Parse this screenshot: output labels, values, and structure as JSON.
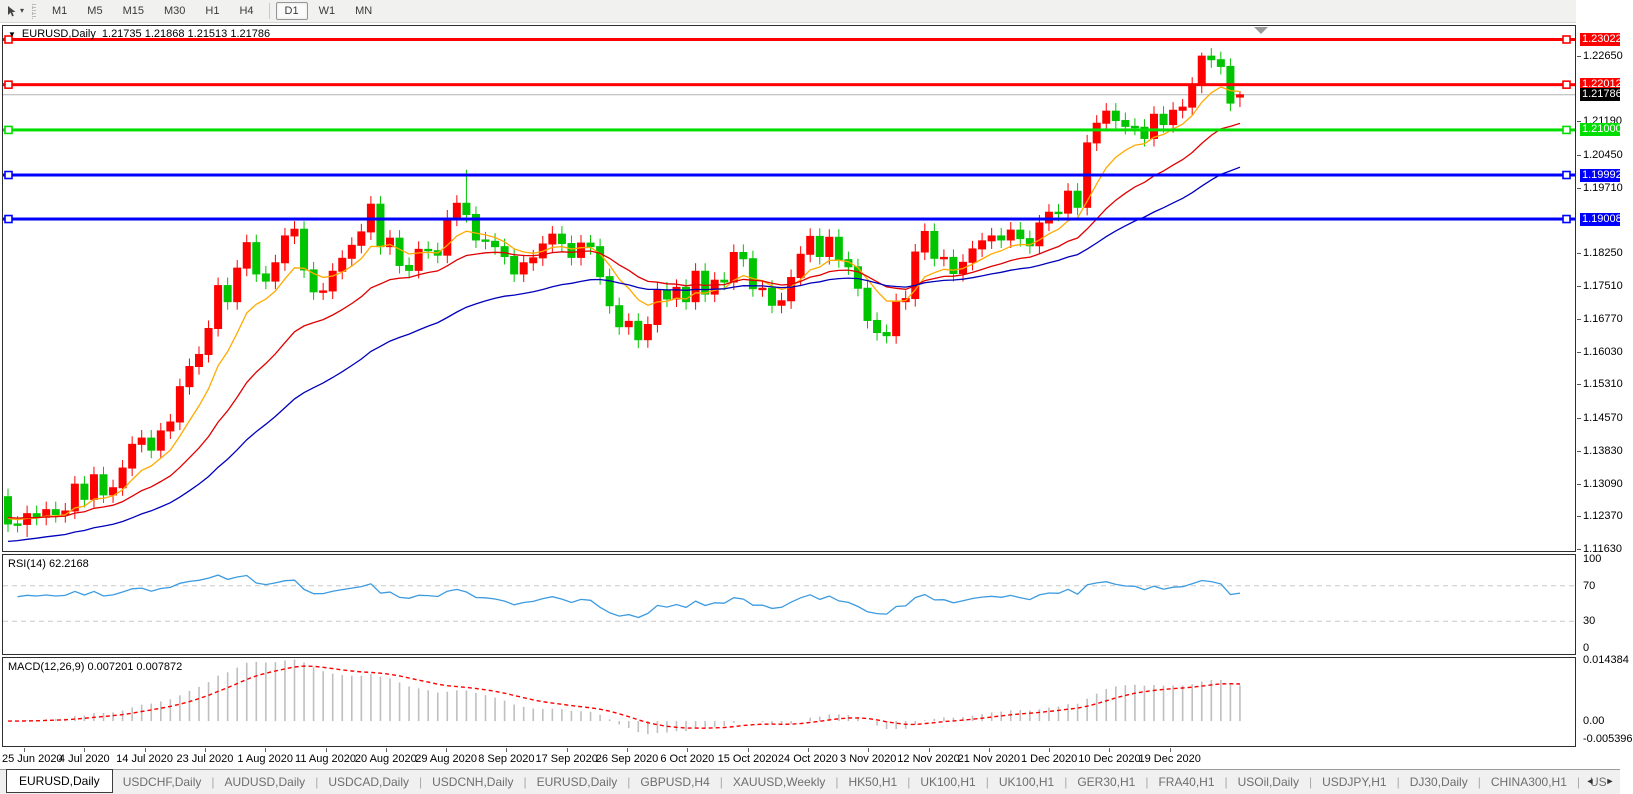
{
  "toolbar": {
    "tool_icon": "chart-cursor-icon",
    "dropdown_caret": "▾",
    "timeframes": [
      {
        "label": "M1",
        "active": false
      },
      {
        "label": "M5",
        "active": false
      },
      {
        "label": "M15",
        "active": false
      },
      {
        "label": "M30",
        "active": false
      },
      {
        "label": "H1",
        "active": false
      },
      {
        "label": "H4",
        "active": false
      },
      {
        "label": "D1",
        "active": true
      },
      {
        "label": "W1",
        "active": false
      },
      {
        "label": "MN",
        "active": false
      }
    ]
  },
  "chart": {
    "title": "EURUSD,Daily",
    "ohlc_text": "1.21735 1.21868 1.21513 1.21786",
    "collapse_marker": "▼"
  },
  "axis": {
    "price_ticks": [
      "1.22650",
      "1.21190",
      "1.20450",
      "1.19710",
      "1.18250",
      "1.17510",
      "1.16770",
      "1.16030",
      "1.15310",
      "1.14570",
      "1.13830",
      "1.13090",
      "1.12370",
      "1.11630"
    ],
    "date_ticks": [
      "25 Jun 2020",
      "4 Jul 2020",
      "14 Jul 2020",
      "23 Jul 2020",
      "1 Aug 2020",
      "11 Aug 2020",
      "20 Aug 2020",
      "29 Aug 2020",
      "8 Sep 2020",
      "17 Sep 2020",
      "26 Sep 2020",
      "6 Oct 2020",
      "15 Oct 2020",
      "24 Oct 2020",
      "3 Nov 2020",
      "12 Nov 2020",
      "21 Nov 2020",
      "1 Dec 2020",
      "10 Dec 2020",
      "19 Dec 2020"
    ]
  },
  "levels": [
    {
      "price": 1.23022,
      "label": "1.23022",
      "color": "#fe0000",
      "thickness": 3
    },
    {
      "price": 1.22012,
      "label": "1.22012",
      "color": "#fe0000",
      "thickness": 3
    },
    {
      "price": 1.21,
      "label": "1.21000",
      "color": "#00dd00",
      "thickness": 3
    },
    {
      "price": 1.19992,
      "label": "1.19992",
      "color": "#0000fe",
      "thickness": 3
    },
    {
      "price": 1.19008,
      "label": "1.19008",
      "color": "#0000fe",
      "thickness": 3
    }
  ],
  "price_line": {
    "price": 1.21786,
    "label": "1.21786",
    "line_color": "#b4b4b4",
    "label_bg": "#000000",
    "label_fg": "#ffffff"
  },
  "rsi_panel": {
    "label": "RSI(14) 62.2168",
    "scale": [
      "100",
      "70",
      "30",
      "0"
    ],
    "gridlines": [
      70,
      30
    ],
    "line_color": "#3d9be0",
    "grid_color": "#c8c8c8"
  },
  "macd_panel": {
    "label": "MACD(12,26,9) 0.007201 0.007872",
    "scale_max": "0.014384",
    "scale_zero": "0.00",
    "scale_min": "-0.005396",
    "bar_color": "#bfbfbf",
    "signal_color": "#fe0000"
  },
  "chart_data": {
    "type": "candlestick",
    "symbol": "EURUSD",
    "period": "Daily",
    "ylim": [
      1.1158,
      1.2332
    ],
    "x_start_label": "25 Jun 2020",
    "x_end_label": "19 Dec 2020",
    "bull_color": "#fe0000",
    "bear_color": "#00c400",
    "open_first": 1.128,
    "default_wick": 0.0018,
    "closes": [
      1.1219,
      1.1218,
      1.1242,
      1.1234,
      1.1251,
      1.124,
      1.1248,
      1.1308,
      1.1274,
      1.1329,
      1.1284,
      1.13,
      1.1344,
      1.1397,
      1.1411,
      1.1384,
      1.1427,
      1.1447,
      1.1526,
      1.1571,
      1.1598,
      1.1656,
      1.1752,
      1.1716,
      1.1791,
      1.1848,
      1.1778,
      1.1762,
      1.1803,
      1.1863,
      1.1878,
      1.1787,
      1.1738,
      1.174,
      1.1784,
      1.1813,
      1.1842,
      1.1872,
      1.1934,
      1.1839,
      1.1858,
      1.1797,
      1.1786,
      1.1833,
      1.183,
      1.182,
      1.1903,
      1.1936,
      1.1911,
      1.1854,
      1.1851,
      1.1839,
      1.1817,
      1.1778,
      1.1803,
      1.1814,
      1.1845,
      1.1867,
      1.1846,
      1.1815,
      1.1847,
      1.1839,
      1.1772,
      1.1707,
      1.166,
      1.1672,
      1.1631,
      1.1665,
      1.1742,
      1.1722,
      1.1748,
      1.1716,
      1.1784,
      1.1733,
      1.1764,
      1.176,
      1.1826,
      1.1812,
      1.1745,
      1.1746,
      1.1708,
      1.1718,
      1.177,
      1.1822,
      1.1862,
      1.1817,
      1.186,
      1.181,
      1.1794,
      1.1746,
      1.1674,
      1.1647,
      1.164,
      1.1716,
      1.1723,
      1.1827,
      1.1873,
      1.1813,
      1.1815,
      1.1779,
      1.1804,
      1.1834,
      1.1852,
      1.1863,
      1.1854,
      1.1876,
      1.1857,
      1.1841,
      1.1892,
      1.1916,
      1.1914,
      1.1963,
      1.1927,
      1.2071,
      1.2115,
      1.2142,
      1.2121,
      1.2108,
      1.2106,
      1.2081,
      1.2135,
      1.2112,
      1.2144,
      1.2151,
      1.22,
      1.2265,
      1.2257,
      1.2242,
      1.216,
      1.21786
    ],
    "overrides": {
      "2": {
        "low": 1.119
      },
      "38": {
        "high": 1.1952
      },
      "48": {
        "high": 1.2011
      },
      "66": {
        "low": 1.1612
      },
      "92": {
        "low": 1.1623
      },
      "125": {
        "high": 1.2273
      },
      "129": {
        "open": 1.21735,
        "high": 1.21868,
        "low": 1.21513
      }
    },
    "moving_averages": [
      {
        "period": 8,
        "color": "#ffaa00",
        "seed": 1.1235
      },
      {
        "period": 20,
        "color": "#e00000",
        "seed": 1.1235
      },
      {
        "period": 40,
        "color": "#0000bb",
        "seed": 1.1178
      }
    ],
    "indicators": {
      "rsi": {
        "period": 14,
        "current": 62.2168,
        "seed_gain": 0.003,
        "seed_loss": 0.0022,
        "levels": [
          70,
          30
        ]
      },
      "macd": {
        "fast": 12,
        "slow": 26,
        "signal": 9,
        "current_main": 0.007201,
        "current_signal": 0.007872,
        "range": [
          -0.005396,
          0.014384
        ]
      }
    }
  },
  "tabs": {
    "items": [
      {
        "label": "EURUSD,Daily",
        "active": true
      },
      {
        "label": "USDCHF,Daily",
        "active": false
      },
      {
        "label": "AUDUSD,Daily",
        "active": false
      },
      {
        "label": "USDCAD,Daily",
        "active": false
      },
      {
        "label": "USDCNH,Daily",
        "active": false
      },
      {
        "label": "EURUSD,Daily",
        "active": false
      },
      {
        "label": "GBPUSD,H4",
        "active": false
      },
      {
        "label": "XAUUSD,Weekly",
        "active": false
      },
      {
        "label": "HK50,H1",
        "active": false
      },
      {
        "label": "UK100,H1",
        "active": false
      },
      {
        "label": "UK100,H1",
        "active": false
      },
      {
        "label": "GER30,H1",
        "active": false
      },
      {
        "label": "FRA40,H1",
        "active": false
      },
      {
        "label": "USOil,Daily",
        "active": false
      },
      {
        "label": "USDJPY,H1",
        "active": false
      },
      {
        "label": "DJ30,Daily",
        "active": false
      },
      {
        "label": "CHINA300,H1",
        "active": false
      },
      {
        "label": "US",
        "active": false
      }
    ],
    "scroll_left": "◄",
    "scroll_right": "►"
  }
}
